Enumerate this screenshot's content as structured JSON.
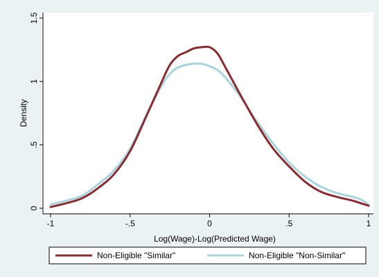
{
  "chart_data": {
    "type": "line",
    "xlabel": "Log(Wage)-Log(Predicted Wage)",
    "ylabel": "Density",
    "xlim": [
      -1,
      1
    ],
    "ylim": [
      0,
      1.5
    ],
    "xticks": [
      -1,
      -0.5,
      0,
      0.5,
      1
    ],
    "xtick_labels": [
      "-1",
      "-.5",
      "0",
      ".5",
      "1"
    ],
    "yticks": [
      0,
      0.5,
      1,
      1.5
    ],
    "ytick_labels": [
      "0",
      ".5",
      "1",
      "1.5"
    ],
    "grid": false,
    "legend_position": "bottom",
    "series": [
      {
        "name": "Non-Eligible \"Similar\"",
        "color": "#8b2a2f",
        "x": [
          -1.0,
          -0.9,
          -0.8,
          -0.7,
          -0.6,
          -0.5,
          -0.4,
          -0.3,
          -0.25,
          -0.2,
          -0.15,
          -0.1,
          -0.05,
          0.0,
          0.05,
          0.1,
          0.2,
          0.3,
          0.4,
          0.5,
          0.6,
          0.7,
          0.8,
          0.9,
          0.95,
          1.0
        ],
        "y": [
          0.01,
          0.04,
          0.08,
          0.16,
          0.27,
          0.45,
          0.72,
          1.0,
          1.13,
          1.2,
          1.23,
          1.26,
          1.27,
          1.27,
          1.22,
          1.11,
          0.88,
          0.66,
          0.47,
          0.33,
          0.21,
          0.13,
          0.09,
          0.06,
          0.04,
          0.02
        ]
      },
      {
        "name": "Non-Eligible \"Non-Similar\"",
        "color": "#a8d4dc",
        "x": [
          -1.0,
          -0.9,
          -0.8,
          -0.7,
          -0.6,
          -0.5,
          -0.4,
          -0.3,
          -0.25,
          -0.2,
          -0.15,
          -0.1,
          -0.05,
          0.0,
          0.05,
          0.1,
          0.2,
          0.3,
          0.4,
          0.5,
          0.6,
          0.7,
          0.8,
          0.9,
          0.95,
          1.0
        ],
        "y": [
          0.03,
          0.06,
          0.1,
          0.19,
          0.3,
          0.47,
          0.73,
          0.97,
          1.06,
          1.11,
          1.13,
          1.14,
          1.14,
          1.12,
          1.09,
          1.03,
          0.87,
          0.68,
          0.51,
          0.36,
          0.25,
          0.17,
          0.12,
          0.09,
          0.07,
          0.03
        ]
      }
    ]
  }
}
